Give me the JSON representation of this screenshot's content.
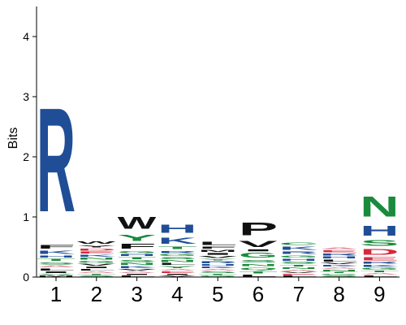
{
  "chart_data": {
    "type": "sequence-logo",
    "ylabel": "Bits",
    "ylim": [
      0,
      4.5
    ],
    "yticks": [
      0,
      1,
      2,
      3,
      4
    ],
    "positions": [
      "1",
      "2",
      "3",
      "4",
      "5",
      "6",
      "7",
      "8",
      "9"
    ],
    "colors": {
      "blue": "#1f4e96",
      "green": "#1a8a3c",
      "black": "#111111",
      "red": "#d42a3c",
      "pink": "#e08a98",
      "teal": "#3aaa88",
      "gray": "#777777"
    },
    "columns": [
      {
        "position": "1",
        "letters": [
          {
            "char": "M",
            "bits": 0.03,
            "color": "black"
          },
          {
            "char": "V",
            "bits": 0.03,
            "color": "green"
          },
          {
            "char": "I",
            "bits": 0.04,
            "color": "black"
          },
          {
            "char": "L",
            "bits": 0.05,
            "color": "black"
          },
          {
            "char": "A",
            "bits": 0.05,
            "color": "pink"
          },
          {
            "char": "S",
            "bits": 0.06,
            "color": "green"
          },
          {
            "char": "T",
            "bits": 0.05,
            "color": "green"
          },
          {
            "char": "H",
            "bits": 0.06,
            "color": "blue"
          },
          {
            "char": "K",
            "bits": 0.08,
            "color": "blue"
          },
          {
            "char": "F",
            "bits": 0.1,
            "color": "black"
          },
          {
            "char": "R",
            "bits": 2.77,
            "color": "blue"
          }
        ]
      },
      {
        "position": "2",
        "letters": [
          {
            "char": "S",
            "bits": 0.03,
            "color": "green"
          },
          {
            "char": "T",
            "bits": 0.03,
            "color": "green"
          },
          {
            "char": "A",
            "bits": 0.04,
            "color": "pink"
          },
          {
            "char": "L",
            "bits": 0.04,
            "color": "black"
          },
          {
            "char": "I",
            "bits": 0.04,
            "color": "black"
          },
          {
            "char": "V",
            "bits": 0.05,
            "color": "black"
          },
          {
            "char": "G",
            "bits": 0.05,
            "color": "green"
          },
          {
            "char": "N",
            "bits": 0.05,
            "color": "green"
          },
          {
            "char": "K",
            "bits": 0.05,
            "color": "blue"
          },
          {
            "char": "E",
            "bits": 0.05,
            "color": "red"
          },
          {
            "char": "D",
            "bits": 0.05,
            "color": "red"
          },
          {
            "char": "Y",
            "bits": 0.06,
            "color": "black"
          },
          {
            "char": "W",
            "bits": 0.07,
            "color": "black"
          }
        ]
      },
      {
        "position": "3",
        "letters": [
          {
            "char": "L",
            "bits": 0.03,
            "color": "black"
          },
          {
            "char": "I",
            "bits": 0.03,
            "color": "black"
          },
          {
            "char": "A",
            "bits": 0.04,
            "color": "pink"
          },
          {
            "char": "V",
            "bits": 0.04,
            "color": "black"
          },
          {
            "char": "K",
            "bits": 0.05,
            "color": "blue"
          },
          {
            "char": "N",
            "bits": 0.05,
            "color": "green"
          },
          {
            "char": "S",
            "bits": 0.05,
            "color": "green"
          },
          {
            "char": "T",
            "bits": 0.05,
            "color": "green"
          },
          {
            "char": "H",
            "bits": 0.05,
            "color": "blue"
          },
          {
            "char": "G",
            "bits": 0.06,
            "color": "green"
          },
          {
            "char": "F",
            "bits": 0.12,
            "color": "black"
          },
          {
            "char": "Y",
            "bits": 0.17,
            "color": "green"
          },
          {
            "char": "W",
            "bits": 0.32,
            "color": "black"
          }
        ]
      },
      {
        "position": "4",
        "letters": [
          {
            "char": "V",
            "bits": 0.03,
            "color": "black"
          },
          {
            "char": "I",
            "bits": 0.03,
            "color": "black"
          },
          {
            "char": "E",
            "bits": 0.04,
            "color": "red"
          },
          {
            "char": "A",
            "bits": 0.04,
            "color": "pink"
          },
          {
            "char": "Y",
            "bits": 0.05,
            "color": "green"
          },
          {
            "char": "L",
            "bits": 0.05,
            "color": "black"
          },
          {
            "char": "N",
            "bits": 0.05,
            "color": "green"
          },
          {
            "char": "S",
            "bits": 0.05,
            "color": "green"
          },
          {
            "char": "G",
            "bits": 0.05,
            "color": "green"
          },
          {
            "char": "R",
            "bits": 0.06,
            "color": "blue"
          },
          {
            "char": "T",
            "bits": 0.07,
            "color": "green"
          },
          {
            "char": "K",
            "bits": 0.17,
            "color": "blue"
          },
          {
            "char": "H",
            "bits": 0.22,
            "color": "blue"
          }
        ]
      },
      {
        "position": "5",
        "letters": [
          {
            "char": "G",
            "bits": 0.03,
            "color": "green"
          },
          {
            "char": "T",
            "bits": 0.03,
            "color": "green"
          },
          {
            "char": "S",
            "bits": 0.04,
            "color": "green"
          },
          {
            "char": "A",
            "bits": 0.04,
            "color": "pink"
          },
          {
            "char": "K",
            "bits": 0.04,
            "color": "blue"
          },
          {
            "char": "H",
            "bits": 0.04,
            "color": "blue"
          },
          {
            "char": "R",
            "bits": 0.05,
            "color": "blue"
          },
          {
            "char": "Y",
            "bits": 0.04,
            "color": "green"
          },
          {
            "char": "V",
            "bits": 0.05,
            "color": "black"
          },
          {
            "char": "I",
            "bits": 0.05,
            "color": "black"
          },
          {
            "char": "M",
            "bits": 0.05,
            "color": "black"
          },
          {
            "char": "F",
            "bits": 0.06,
            "color": "black"
          },
          {
            "char": "L",
            "bits": 0.08,
            "color": "black"
          }
        ]
      },
      {
        "position": "6",
        "letters": [
          {
            "char": "L",
            "bits": 0.05,
            "color": "black"
          },
          {
            "char": "T",
            "bits": 0.06,
            "color": "green"
          },
          {
            "char": "Q",
            "bits": 0.06,
            "color": "green"
          },
          {
            "char": "N",
            "bits": 0.06,
            "color": "green"
          },
          {
            "char": "S",
            "bits": 0.07,
            "color": "green"
          },
          {
            "char": "G",
            "bits": 0.12,
            "color": "green"
          },
          {
            "char": "I",
            "bits": 0.05,
            "color": "black"
          },
          {
            "char": "V",
            "bits": 0.16,
            "color": "black"
          },
          {
            "char": "P",
            "bits": 0.34,
            "color": "black"
          }
        ]
      },
      {
        "position": "7",
        "letters": [
          {
            "char": "L",
            "bits": 0.03,
            "color": "black"
          },
          {
            "char": "E",
            "bits": 0.03,
            "color": "red"
          },
          {
            "char": "V",
            "bits": 0.03,
            "color": "black"
          },
          {
            "char": "A",
            "bits": 0.04,
            "color": "pink"
          },
          {
            "char": "N",
            "bits": 0.04,
            "color": "green"
          },
          {
            "char": "T",
            "bits": 0.04,
            "color": "green"
          },
          {
            "char": "S",
            "bits": 0.05,
            "color": "green"
          },
          {
            "char": "H",
            "bits": 0.05,
            "color": "blue"
          },
          {
            "char": "G",
            "bits": 0.06,
            "color": "green"
          },
          {
            "char": "R",
            "bits": 0.07,
            "color": "blue"
          },
          {
            "char": "K",
            "bits": 0.08,
            "color": "blue"
          },
          {
            "char": "C",
            "bits": 0.07,
            "color": "green"
          }
        ]
      },
      {
        "position": "8",
        "letters": [
          {
            "char": "S",
            "bits": 0.03,
            "color": "green"
          },
          {
            "char": "G",
            "bits": 0.03,
            "color": "green"
          },
          {
            "char": "T",
            "bits": 0.03,
            "color": "green"
          },
          {
            "char": "N",
            "bits": 0.04,
            "color": "green"
          },
          {
            "char": "A",
            "bits": 0.04,
            "color": "pink"
          },
          {
            "char": "K",
            "bits": 0.04,
            "color": "blue"
          },
          {
            "char": "V",
            "bits": 0.04,
            "color": "black"
          },
          {
            "char": "L",
            "bits": 0.05,
            "color": "black"
          },
          {
            "char": "H",
            "bits": 0.05,
            "color": "blue"
          },
          {
            "char": "R",
            "bits": 0.05,
            "color": "blue"
          },
          {
            "char": "E",
            "bits": 0.05,
            "color": "red"
          },
          {
            "char": "A",
            "bits": 0.05,
            "color": "pink"
          }
        ]
      },
      {
        "position": "9",
        "letters": [
          {
            "char": "L",
            "bits": 0.03,
            "color": "black"
          },
          {
            "char": "A",
            "bits": 0.04,
            "color": "pink"
          },
          {
            "char": "T",
            "bits": 0.04,
            "color": "green"
          },
          {
            "char": "G",
            "bits": 0.05,
            "color": "green"
          },
          {
            "char": "K",
            "bits": 0.05,
            "color": "blue"
          },
          {
            "char": "R",
            "bits": 0.05,
            "color": "blue"
          },
          {
            "char": "E",
            "bits": 0.08,
            "color": "red"
          },
          {
            "char": "D",
            "bits": 0.15,
            "color": "red"
          },
          {
            "char": "S",
            "bits": 0.15,
            "color": "green"
          },
          {
            "char": "H",
            "bits": 0.26,
            "color": "blue"
          },
          {
            "char": "N",
            "bits": 0.53,
            "color": "green"
          }
        ]
      }
    ]
  }
}
